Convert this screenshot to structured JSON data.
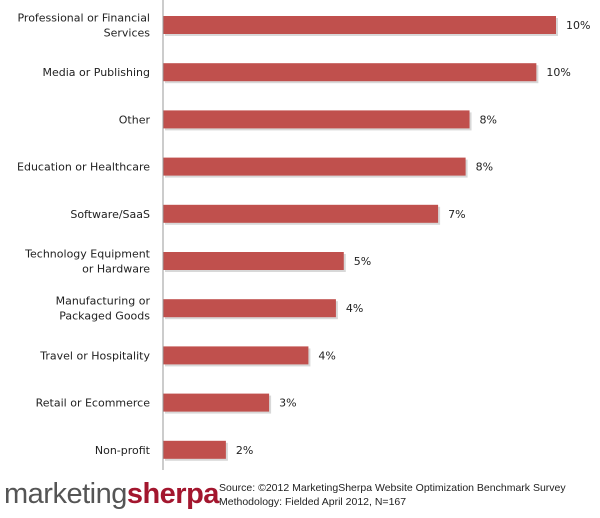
{
  "chart_data": {
    "type": "bar",
    "orientation": "horizontal",
    "categories": [
      [
        "Professional or Financial",
        "Services"
      ],
      [
        "Media or Publishing"
      ],
      [
        "Other"
      ],
      [
        "Education or Healthcare"
      ],
      [
        "Software/SaaS"
      ],
      [
        "Technology Equipment",
        "or Hardware"
      ],
      [
        "Manufacturing or",
        "Packaged Goods"
      ],
      [
        "Travel or Hospitality"
      ],
      [
        "Retail or Ecommerce"
      ],
      [
        "Non-profit"
      ]
    ],
    "values": [
      10.0,
      9.5,
      7.8,
      7.7,
      7.0,
      4.6,
      4.4,
      3.7,
      2.7,
      1.6
    ],
    "data_labels": [
      "10%",
      "10%",
      "8%",
      "8%",
      "7%",
      "5%",
      "4%",
      "4%",
      "3%",
      "2%"
    ],
    "xlim": [
      0,
      10.5
    ],
    "grid": false,
    "bar_color": "#C0504D"
  },
  "footer": {
    "logo_text": "marketingsherpa",
    "logo_part1": "marketing",
    "logo_part2": "sherpa",
    "source": "Source: ©2012 MarketingSherpa Website Optimization Benchmark Survey",
    "methodology": "Methodology: Fielded April 2012, N=167"
  }
}
